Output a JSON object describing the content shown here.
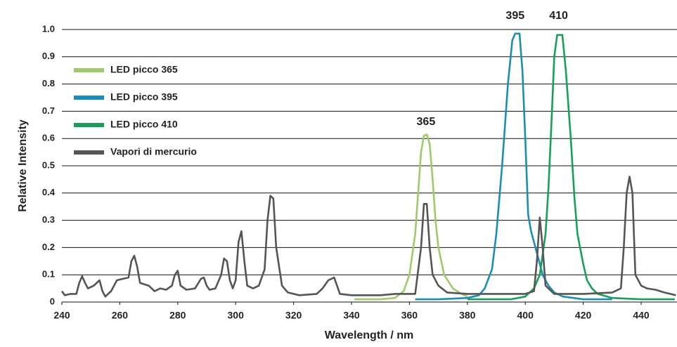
{
  "chart_data": {
    "type": "line",
    "xlabel": "Wavelength / nm",
    "ylabel": "Relative Intensity",
    "xlim": [
      240,
      452
    ],
    "ylim": [
      0,
      1
    ],
    "xticks": [
      240,
      260,
      280,
      300,
      320,
      340,
      360,
      380,
      400,
      420,
      440
    ],
    "yticks": [
      0,
      0.1,
      0.2,
      0.3,
      0.4,
      0.5,
      0.6,
      0.7,
      0.8,
      0.9,
      {
        "value": 1,
        "label": "1.0"
      }
    ],
    "grid": true,
    "legend": "upper left",
    "annotations": [
      {
        "text": "365",
        "x": 365.7,
        "y": 0.66
      },
      {
        "text": "395",
        "x": 396.5,
        "y": 1.05
      },
      {
        "text": "410",
        "x": 411.5,
        "y": 1.05
      }
    ],
    "series": [
      {
        "name": "LED picco 365",
        "color": "#9dcb6a",
        "x": [
          341,
          350,
          355,
          358,
          360,
          362,
          363,
          364,
          365,
          366,
          367,
          368,
          369,
          370,
          372,
          375,
          378,
          380
        ],
        "values": [
          0.01,
          0.01,
          0.015,
          0.04,
          0.1,
          0.25,
          0.4,
          0.55,
          0.61,
          0.615,
          0.58,
          0.45,
          0.3,
          0.2,
          0.1,
          0.05,
          0.03,
          0.02
        ]
      },
      {
        "name": "LED picco 395",
        "color": "#1a8fb5",
        "x": [
          362,
          370,
          380,
          384,
          386,
          388.5,
          390,
          392,
          394,
          395.5,
          396.5,
          398,
          399,
          400,
          401,
          402,
          404,
          406,
          408,
          410,
          413,
          420,
          430
        ],
        "values": [
          0.01,
          0.01,
          0.015,
          0.025,
          0.05,
          0.12,
          0.25,
          0.5,
          0.8,
          0.96,
          0.985,
          0.985,
          0.85,
          0.6,
          0.32,
          0.26,
          0.18,
          0.1,
          0.06,
          0.035,
          0.02,
          0.01,
          0.01
        ]
      },
      {
        "name": "LED picco 410",
        "color": "#17a05a",
        "x": [
          380,
          395,
          400,
          403,
          405,
          407,
          408,
          409,
          410,
          411,
          412.8,
          414,
          415.7,
          417,
          418,
          420,
          421.3,
          423,
          425,
          430,
          440,
          451.6
        ],
        "values": [
          0.01,
          0.01,
          0.02,
          0.05,
          0.1,
          0.25,
          0.42,
          0.65,
          0.9,
          0.98,
          0.98,
          0.85,
          0.6,
          0.38,
          0.25,
          0.14,
          0.08,
          0.05,
          0.03,
          0.015,
          0.01,
          0.01
        ]
      },
      {
        "name": "Vapori di mercurio",
        "color": "#555555",
        "x": [
          240,
          241,
          243,
          245,
          246,
          247,
          248,
          249,
          251,
          253,
          254,
          255,
          257,
          259,
          261,
          263,
          264,
          265,
          266,
          267,
          270,
          272,
          274,
          276,
          278,
          279,
          280,
          281,
          283,
          286,
          288,
          289,
          290,
          291,
          293,
          295,
          296,
          297,
          298,
          299,
          300,
          301,
          302,
          303,
          304,
          306,
          308,
          310,
          311,
          312,
          313,
          314,
          316,
          318,
          322,
          328,
          330,
          332,
          334,
          335,
          336,
          340,
          345,
          350,
          355,
          360,
          362,
          364,
          365,
          366,
          367,
          368,
          370,
          373,
          380,
          390,
          400,
          403,
          404,
          405,
          406,
          407,
          410,
          420,
          430,
          433,
          434,
          435,
          436,
          437,
          438,
          440,
          442,
          445,
          448,
          452
        ],
        "values": [
          0.04,
          0.025,
          0.03,
          0.03,
          0.07,
          0.095,
          0.07,
          0.05,
          0.06,
          0.08,
          0.04,
          0.02,
          0.04,
          0.08,
          0.085,
          0.09,
          0.15,
          0.17,
          0.13,
          0.07,
          0.06,
          0.04,
          0.05,
          0.045,
          0.06,
          0.1,
          0.115,
          0.06,
          0.045,
          0.05,
          0.085,
          0.09,
          0.06,
          0.045,
          0.05,
          0.1,
          0.16,
          0.15,
          0.08,
          0.05,
          0.08,
          0.22,
          0.26,
          0.15,
          0.06,
          0.05,
          0.06,
          0.12,
          0.3,
          0.39,
          0.38,
          0.2,
          0.06,
          0.035,
          0.025,
          0.03,
          0.05,
          0.08,
          0.09,
          0.06,
          0.03,
          0.025,
          0.025,
          0.025,
          0.03,
          0.03,
          0.03,
          0.2,
          0.36,
          0.36,
          0.2,
          0.1,
          0.06,
          0.035,
          0.03,
          0.03,
          0.03,
          0.04,
          0.15,
          0.31,
          0.2,
          0.06,
          0.03,
          0.03,
          0.035,
          0.05,
          0.2,
          0.4,
          0.46,
          0.4,
          0.1,
          0.06,
          0.05,
          0.045,
          0.035,
          0.025
        ]
      }
    ]
  }
}
